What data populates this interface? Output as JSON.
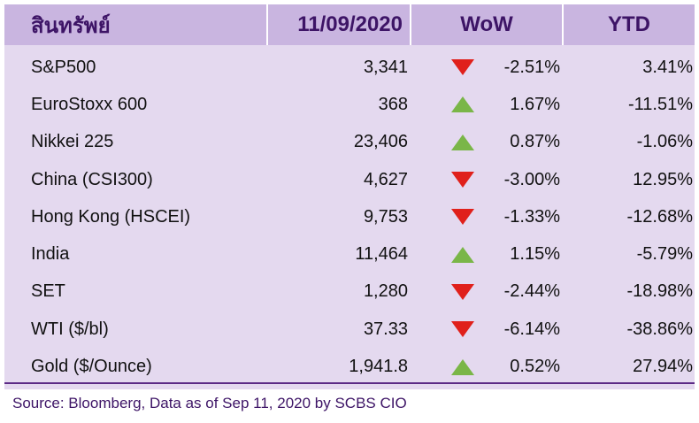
{
  "table": {
    "headers": {
      "asset": "สินทรัพย์",
      "date": "11/09/2020",
      "wow": "WoW",
      "ytd": "YTD"
    },
    "rows": [
      {
        "name": "S&P500",
        "price": "3,341",
        "direction": "down",
        "wow": "-2.51%",
        "ytd": "3.41%"
      },
      {
        "name": "EuroStoxx 600",
        "price": "368",
        "direction": "up",
        "wow": "1.67%",
        "ytd": "-11.51%"
      },
      {
        "name": "Nikkei 225",
        "price": "23,406",
        "direction": "up",
        "wow": "0.87%",
        "ytd": "-1.06%"
      },
      {
        "name": "China (CSI300)",
        "price": "4,627",
        "direction": "down",
        "wow": "-3.00%",
        "ytd": "12.95%"
      },
      {
        "name": "Hong Kong (HSCEI)",
        "price": "9,753",
        "direction": "down",
        "wow": "-1.33%",
        "ytd": "-12.68%"
      },
      {
        "name": "India",
        "price": "11,464",
        "direction": "up",
        "wow": "1.15%",
        "ytd": "-5.79%"
      },
      {
        "name": "SET",
        "price": "1,280",
        "direction": "down",
        "wow": "-2.44%",
        "ytd": "-18.98%"
      },
      {
        "name": "WTI ($/bl)",
        "price": "37.33",
        "direction": "down",
        "wow": "-6.14%",
        "ytd": "-38.86%"
      },
      {
        "name": "Gold ($/Ounce)",
        "price": "1,941.8",
        "direction": "up",
        "wow": "0.52%",
        "ytd": "27.94%"
      }
    ]
  },
  "colors": {
    "up": "#7ab648",
    "down": "#e0201b",
    "header_bg": "#c9b5e0",
    "body_bg": "#e4d9ef",
    "text_accent": "#3d1466"
  },
  "icons": {
    "up": "triangle-up-icon",
    "down": "triangle-down-icon"
  },
  "source": "Source: Bloomberg, Data as of Sep 11, 2020 by SCBS CIO"
}
